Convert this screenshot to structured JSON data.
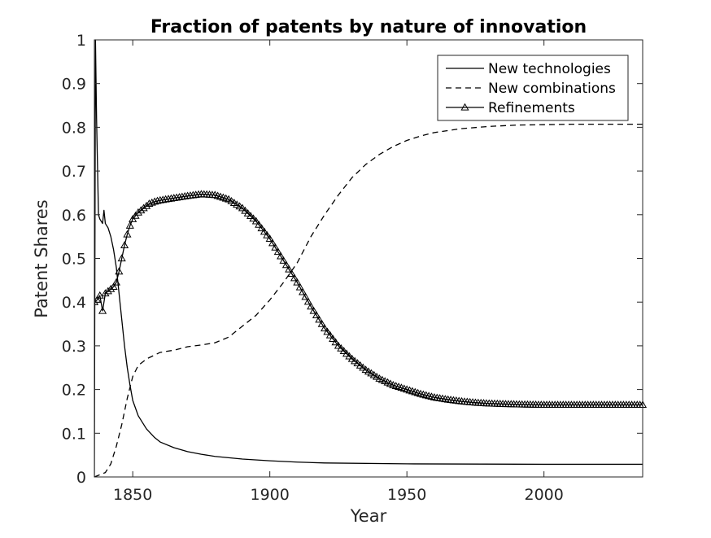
{
  "chart_data": {
    "type": "line",
    "title": "Fraction of patents by nature of innovation",
    "xlabel": "Year",
    "ylabel": "Patent Shares",
    "xlim": [
      1836,
      2036
    ],
    "ylim": [
      0,
      1
    ],
    "xticks": [
      1850,
      1900,
      1950,
      2000
    ],
    "yticks": [
      0,
      0.1,
      0.2,
      0.3,
      0.4,
      0.5,
      0.6,
      0.7,
      0.8,
      0.9,
      1
    ],
    "xtick_labels": [
      "1850",
      "1900",
      "1950",
      "2000"
    ],
    "ytick_labels": [
      "0",
      "0.1",
      "0.2",
      "0.3",
      "0.4",
      "0.5",
      "0.6",
      "0.7",
      "0.8",
      "0.9",
      "1"
    ],
    "grid": false,
    "legend_position": "top-right",
    "series": [
      {
        "name": "New technologies",
        "style": "solid",
        "color": "#000000",
        "x": [
          1836,
          1836.4,
          1836.8,
          1837.5,
          1838,
          1839,
          1839.5,
          1840,
          1841,
          1842,
          1843,
          1844,
          1845,
          1846,
          1847,
          1848,
          1849,
          1850,
          1852,
          1855,
          1858,
          1860,
          1865,
          1870,
          1875,
          1880,
          1890,
          1900,
          1910,
          1920,
          1950,
          2000,
          2036
        ],
        "y": [
          0.0,
          1.0,
          0.82,
          0.6,
          0.59,
          0.58,
          0.61,
          0.58,
          0.57,
          0.55,
          0.52,
          0.48,
          0.42,
          0.36,
          0.3,
          0.25,
          0.21,
          0.175,
          0.14,
          0.11,
          0.09,
          0.08,
          0.067,
          0.058,
          0.052,
          0.047,
          0.041,
          0.037,
          0.034,
          0.032,
          0.03,
          0.029,
          0.029
        ]
      },
      {
        "name": "New combinations",
        "style": "dashed",
        "color": "#000000",
        "x": [
          1836,
          1838,
          1840,
          1842,
          1844,
          1846,
          1848,
          1850,
          1852,
          1855,
          1860,
          1865,
          1870,
          1875,
          1880,
          1885,
          1890,
          1895,
          1900,
          1905,
          1910,
          1915,
          1920,
          1925,
          1930,
          1935,
          1940,
          1945,
          1950,
          1955,
          1960,
          1970,
          1980,
          1990,
          2000,
          2010,
          2020,
          2036
        ],
        "y": [
          0.0,
          0.005,
          0.01,
          0.03,
          0.07,
          0.12,
          0.18,
          0.23,
          0.255,
          0.27,
          0.285,
          0.29,
          0.298,
          0.302,
          0.307,
          0.32,
          0.345,
          0.37,
          0.405,
          0.445,
          0.49,
          0.55,
          0.6,
          0.645,
          0.685,
          0.715,
          0.738,
          0.756,
          0.77,
          0.78,
          0.788,
          0.797,
          0.802,
          0.805,
          0.806,
          0.807,
          0.807,
          0.807
        ]
      },
      {
        "name": "Refinements",
        "style": "solid-triangle",
        "color": "#000000",
        "x": [
          1836,
          1837,
          1838,
          1839,
          1840,
          1841,
          1842,
          1843,
          1844,
          1845,
          1846,
          1847,
          1848,
          1849,
          1850,
          1852,
          1854,
          1856,
          1858,
          1860,
          1865,
          1870,
          1875,
          1880,
          1885,
          1890,
          1895,
          1900,
          1905,
          1910,
          1915,
          1920,
          1925,
          1930,
          1935,
          1940,
          1945,
          1950,
          1955,
          1960,
          1965,
          1970,
          1975,
          1980,
          1985,
          1990,
          2000,
          2010,
          2020,
          2036
        ],
        "y": [
          0.4,
          0.405,
          0.415,
          0.38,
          0.42,
          0.425,
          0.43,
          0.435,
          0.445,
          0.47,
          0.5,
          0.53,
          0.555,
          0.575,
          0.59,
          0.605,
          0.615,
          0.625,
          0.63,
          0.633,
          0.638,
          0.643,
          0.647,
          0.645,
          0.635,
          0.615,
          0.585,
          0.545,
          0.495,
          0.445,
          0.39,
          0.34,
          0.3,
          0.27,
          0.245,
          0.225,
          0.21,
          0.2,
          0.19,
          0.182,
          0.177,
          0.173,
          0.17,
          0.168,
          0.167,
          0.166,
          0.165,
          0.165,
          0.165,
          0.165
        ]
      }
    ]
  }
}
